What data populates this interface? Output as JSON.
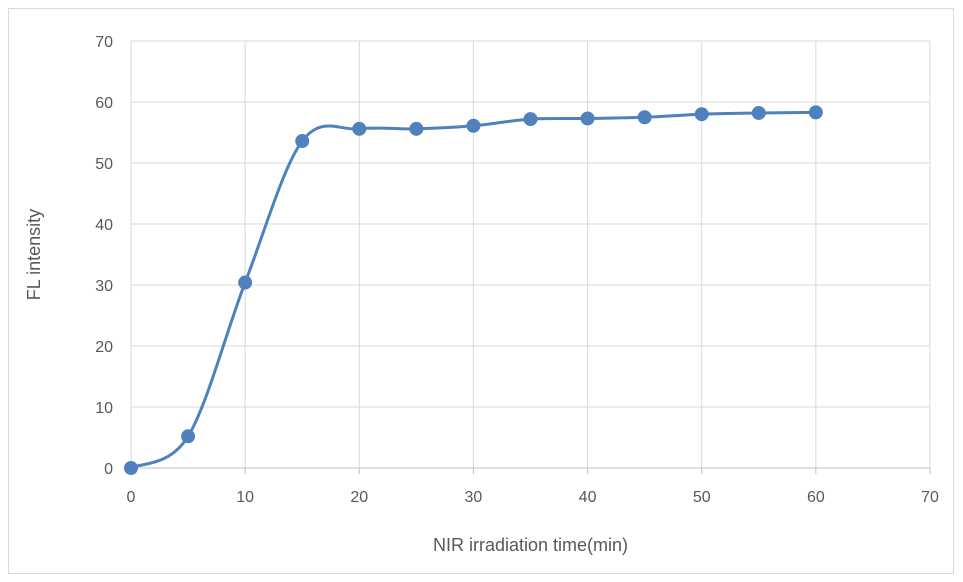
{
  "chart_data": {
    "type": "line",
    "title": "",
    "xlabel": "NIR irradiation time(min)",
    "ylabel": "FL intensity",
    "xlim": [
      0,
      70
    ],
    "ylim": [
      0,
      70
    ],
    "xticks": [
      0,
      10,
      20,
      30,
      40,
      50,
      60,
      70
    ],
    "yticks": [
      0,
      10,
      20,
      30,
      40,
      50,
      60,
      70
    ],
    "grid": true,
    "smooth": true,
    "legend": "none",
    "series": [
      {
        "color": "#4f81bd",
        "x": [
          0,
          5,
          10,
          15,
          20,
          25,
          30,
          35,
          40,
          45,
          50,
          55,
          60
        ],
        "y": [
          0,
          5.2,
          30.4,
          53.6,
          55.6,
          55.6,
          56.1,
          57.2,
          57.3,
          57.5,
          58.0,
          58.2,
          58.3
        ]
      }
    ]
  }
}
